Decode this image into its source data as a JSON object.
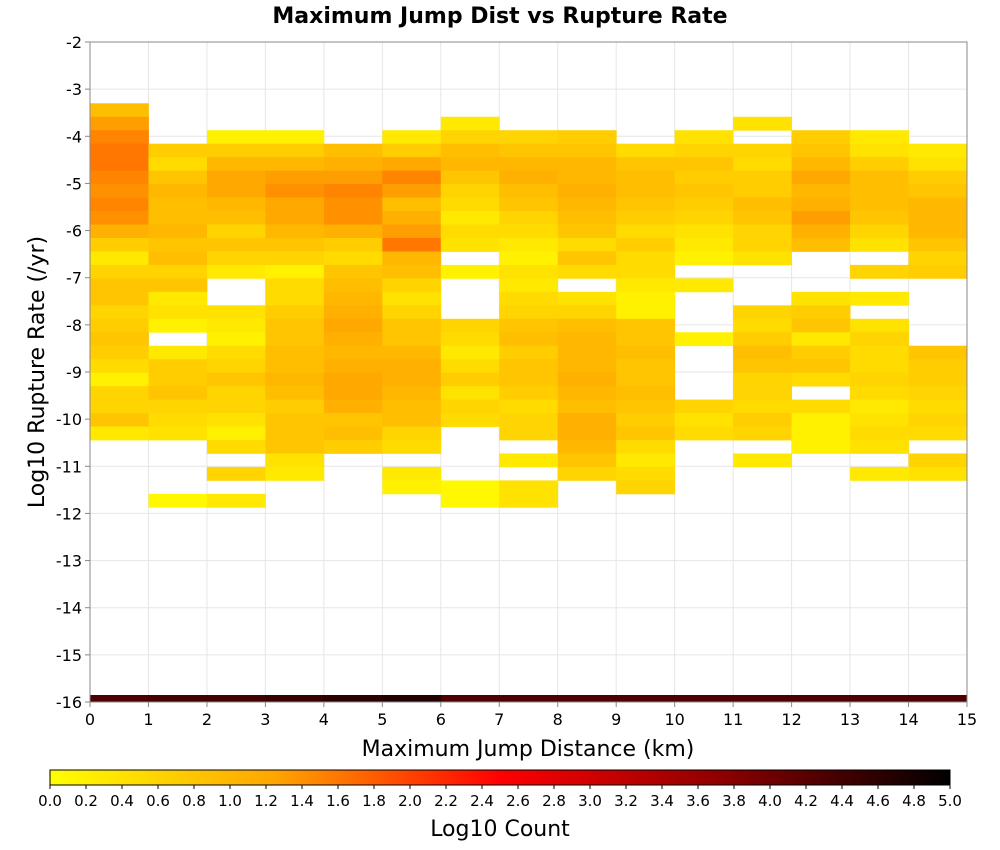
{
  "chart_data": {
    "type": "heatmap",
    "title": "Maximum Jump Dist vs Rupture Rate",
    "xlabel": "Maximum Jump Distance (km)",
    "ylabel": "Log10 Rupture Rate (/yr)",
    "xlim": [
      0,
      15
    ],
    "ylim": [
      -16,
      -2
    ],
    "x_ticks": [
      "0",
      "1",
      "2",
      "3",
      "4",
      "5",
      "6",
      "7",
      "8",
      "9",
      "10",
      "11",
      "12",
      "13",
      "14",
      "15"
    ],
    "y_ticks": [
      "-2",
      "-3",
      "-4",
      "-5",
      "-6",
      "-7",
      "-8",
      "-9",
      "-10",
      "-11",
      "-12",
      "-13",
      "-14",
      "-15",
      "-16"
    ],
    "x_bin_width": 1,
    "y_bin_height": 0.2857,
    "colorbar": {
      "label": "Log10 Count",
      "range": [
        0,
        5
      ],
      "ticks": [
        "0.0",
        "0.2",
        "0.4",
        "0.6",
        "0.8",
        "1.0",
        "1.2",
        "1.4",
        "1.6",
        "1.8",
        "2.0",
        "2.2",
        "2.4",
        "2.6",
        "2.8",
        "3.0",
        "3.2",
        "3.4",
        "3.6",
        "3.8",
        "4.0",
        "4.2",
        "4.4",
        "4.6",
        "4.8",
        "5.0"
      ],
      "colors": [
        "#ffff00",
        "#ffa500",
        "#ff0000",
        "#8b0000",
        "#000000"
      ]
    },
    "baseline_row": {
      "y": -16,
      "values": [
        4.3,
        4.4,
        4.4,
        4.5,
        4.6,
        4.7,
        4.3,
        4.3,
        4.3,
        4.3,
        4.3,
        4.3,
        4.3,
        4.3,
        4.3
      ]
    },
    "columns": [
      {
        "x": 0,
        "y_top": -3.3,
        "values": [
          0.9,
          1.3,
          1.5,
          1.6,
          1.6,
          1.5,
          1.4,
          1.5,
          1.4,
          1.1,
          0.7,
          0.3,
          0.6,
          0.8,
          0.8,
          0.6,
          0.7,
          0.8,
          0.7,
          0.5,
          0.2,
          0.6,
          0.6,
          0.8,
          0.3
        ]
      },
      {
        "x": 1,
        "y_top": -4.157,
        "values": [
          0.7,
          0.5,
          0.8,
          1.0,
          0.9,
          0.9,
          1.0,
          0.8,
          0.9,
          0.6,
          0.8,
          0.3,
          0.4,
          0.2,
          null,
          0.3,
          0.7,
          0.7,
          0.8,
          0.6,
          0.5,
          0.4,
          null,
          null,
          null,
          null,
          0.1
        ]
      },
      {
        "x": 2,
        "y_top": -3.871,
        "values": [
          0.2,
          0.7,
          1.0,
          1.2,
          1.2,
          1.0,
          0.9,
          0.6,
          0.8,
          0.6,
          0.3,
          null,
          null,
          0.4,
          0.3,
          0.2,
          0.5,
          0.6,
          0.8,
          0.6,
          0.6,
          0.4,
          0.2,
          0.5,
          null,
          0.6,
          null,
          0.3
        ]
      },
      {
        "x": 3,
        "y_top": -3.871,
        "values": [
          0.2,
          0.7,
          1.0,
          1.3,
          1.4,
          1.2,
          1.2,
          1.0,
          0.8,
          0.6,
          0.2,
          0.5,
          0.5,
          0.7,
          0.8,
          0.8,
          0.9,
          0.9,
          1.0,
          0.9,
          0.7,
          0.8,
          0.8,
          0.8,
          0.4,
          0.3
        ]
      },
      {
        "x": 4,
        "y_top": -4.157,
        "values": [
          0.9,
          1.1,
          1.3,
          1.5,
          1.4,
          1.4,
          1.1,
          0.7,
          0.5,
          0.8,
          0.9,
          1.0,
          1.1,
          1.2,
          1.1,
          1.0,
          1.1,
          1.2,
          1.2,
          1.1,
          0.8,
          0.9,
          0.7
        ]
      },
      {
        "x": 5,
        "y_top": -3.871,
        "values": [
          0.3,
          0.7,
          1.2,
          1.5,
          1.3,
          0.9,
          1.1,
          1.3,
          1.6,
          1.0,
          0.9,
          0.6,
          0.4,
          0.6,
          0.8,
          0.8,
          1.0,
          1.1,
          1.1,
          1.0,
          0.9,
          0.9,
          0.6,
          0.5,
          null,
          0.3,
          0.2
        ]
      },
      {
        "x": 6,
        "y_top": -3.586,
        "values": [
          0.3,
          0.6,
          0.9,
          1.0,
          0.8,
          0.6,
          0.5,
          0.3,
          0.5,
          0.4,
          null,
          0.2,
          null,
          null,
          null,
          0.6,
          0.5,
          0.3,
          0.5,
          0.7,
          0.4,
          0.6,
          0.5,
          null,
          null,
          null,
          null,
          0.1,
          0.1
        ]
      },
      {
        "x": 7,
        "y_top": -3.871,
        "values": [
          0.6,
          0.8,
          1.0,
          1.1,
          0.9,
          0.8,
          0.6,
          0.5,
          0.3,
          0.2,
          0.4,
          0.3,
          0.5,
          0.6,
          0.8,
          0.9,
          0.7,
          0.8,
          0.8,
          0.7,
          0.5,
          0.6,
          0.6,
          null,
          0.3,
          null,
          0.4,
          0.4
        ]
      },
      {
        "x": 8,
        "y_top": -3.871,
        "values": [
          0.7,
          0.8,
          1.0,
          1.0,
          1.1,
          1.0,
          0.9,
          0.8,
          0.5,
          0.8,
          0.5,
          null,
          0.4,
          0.6,
          0.9,
          1.0,
          1.0,
          1.0,
          1.1,
          1.0,
          0.9,
          1.1,
          1.1,
          1.0,
          0.8,
          0.6
        ]
      },
      {
        "x": 9,
        "y_top": -4.157,
        "values": [
          0.5,
          0.8,
          0.9,
          0.9,
          0.8,
          0.7,
          0.5,
          0.7,
          0.5,
          0.5,
          0.3,
          0.2,
          0.2,
          0.8,
          0.8,
          0.9,
          0.8,
          0.8,
          0.9,
          0.8,
          0.7,
          0.8,
          0.5,
          0.3,
          0.5,
          0.6
        ]
      },
      {
        "x": 10,
        "y_top": -3.871,
        "values": [
          0.4,
          0.6,
          0.8,
          0.7,
          0.8,
          0.7,
          0.6,
          0.4,
          0.3,
          0.2,
          null,
          0.3,
          null,
          null,
          null,
          0.2,
          null,
          null,
          null,
          null,
          0.6,
          0.4,
          0.5
        ]
      },
      {
        "x": 11,
        "y_top": -3.586,
        "values": [
          0.4,
          null,
          0.6,
          0.5,
          0.7,
          0.7,
          0.9,
          0.8,
          0.6,
          0.6,
          0.4,
          null,
          null,
          null,
          0.6,
          0.5,
          0.7,
          0.9,
          0.8,
          0.6,
          0.6,
          0.5,
          0.7,
          0.6,
          null,
          0.3
        ]
      },
      {
        "x": 12,
        "y_top": -3.871,
        "values": [
          0.7,
          0.8,
          1.0,
          1.2,
          1.0,
          1.1,
          1.3,
          1.1,
          0.9,
          null,
          null,
          null,
          0.4,
          0.7,
          0.8,
          0.3,
          0.7,
          0.8,
          0.5,
          null,
          0.5,
          0.2,
          0.2,
          0.2
        ]
      },
      {
        "x": 13,
        "y_top": -3.871,
        "values": [
          0.3,
          0.4,
          0.7,
          0.9,
          0.9,
          0.9,
          0.8,
          0.6,
          0.4,
          null,
          0.6,
          null,
          0.3,
          null,
          0.4,
          0.6,
          0.5,
          0.5,
          0.6,
          0.5,
          0.3,
          0.4,
          0.5,
          0.4,
          null,
          0.3
        ]
      },
      {
        "x": 14,
        "y_top": -4.157,
        "values": [
          0.3,
          0.4,
          0.7,
          0.8,
          1.0,
          1.0,
          1.0,
          0.8,
          0.6,
          0.7,
          null,
          null,
          null,
          null,
          null,
          0.8,
          0.7,
          0.7,
          0.6,
          0.5,
          0.6,
          0.5,
          null,
          0.6,
          0.4
        ]
      }
    ]
  }
}
